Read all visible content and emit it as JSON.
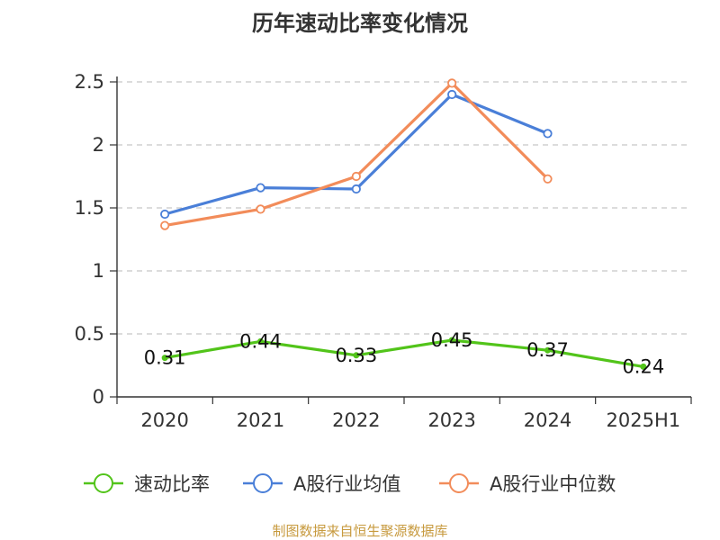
{
  "chart_data": {
    "type": "line",
    "title": "历年速动比率变化情况",
    "categories": [
      "2020",
      "2021",
      "2022",
      "2023",
      "2024",
      "2025H1"
    ],
    "ylim": [
      0,
      2.5
    ],
    "yticks": [
      "0",
      "0.5",
      "1",
      "1.5",
      "2",
      "2.5"
    ],
    "grid": true,
    "legend_position": "bottom",
    "series": [
      {
        "name": "速动比率",
        "color": "#52c41a",
        "values": [
          0.31,
          0.44,
          0.33,
          0.45,
          0.37,
          0.24
        ],
        "labels": [
          "0.31",
          "0.44",
          "0.33",
          "0.45",
          "0.37",
          "0.24"
        ]
      },
      {
        "name": "A股行业均值",
        "color": "#4a7fd8",
        "values": [
          1.45,
          1.66,
          1.65,
          2.4,
          2.09,
          null
        ]
      },
      {
        "name": "A股行业中位数",
        "color": "#f28c5a",
        "values": [
          1.36,
          1.49,
          1.75,
          2.49,
          1.73,
          null
        ]
      }
    ]
  },
  "source": {
    "text": "制图数据来自恒生聚源数据库",
    "color": "#c79a3e"
  }
}
